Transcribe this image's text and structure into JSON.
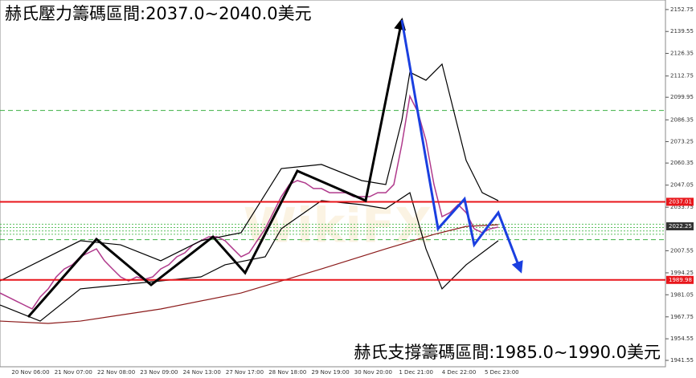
{
  "chart_data": {
    "type": "line",
    "title": "赫氏壓力籌碼區間:2037.0~2040.0美元",
    "annotation": "赫氏支撐籌碼區間:1985.0~1990.0美元",
    "watermark": "WikiFX",
    "categories": [
      "20 Nov 06:00",
      "21 Nov 07:00",
      "22 Nov 08:00",
      "23 Nov 09:00",
      "24 Nov 13:00",
      "27 Nov 17:00",
      "28 Nov 18:00",
      "29 Nov 19:00",
      "30 Nov 20:00",
      "1 Dec 21:00",
      "4 Dec 22:00",
      "5 Dec 23:00"
    ],
    "series": [
      {
        "name": "price",
        "color": "#b03a8c",
        "x": [
          0,
          1,
          2,
          3,
          4,
          5,
          6,
          7,
          8,
          9,
          10,
          11,
          12,
          13,
          14,
          15,
          16,
          17,
          18,
          19,
          20,
          21,
          22,
          23,
          24,
          25,
          26,
          27,
          28,
          29,
          30,
          31,
          32,
          33,
          34,
          35,
          36,
          37,
          38,
          39,
          40,
          41,
          42,
          43,
          44,
          45,
          46,
          47,
          48,
          49,
          50,
          51,
          52,
          53,
          54,
          55,
          56,
          57,
          58,
          59,
          60,
          61,
          62
        ],
        "values": [
          1982.1,
          1979.7,
          1977.3,
          1974.9,
          1972.5,
          1979.7,
          1984.6,
          1991.8,
          1996.6,
          1999.1,
          2003.9,
          2006.3,
          2008.7,
          2001.5,
          1996.6,
          1991.8,
          1989.4,
          1991.8,
          1990.4,
          1991.8,
          1996.6,
          1999.1,
          2003.9,
          2006.3,
          2011.1,
          2013.6,
          2016.0,
          2016.0,
          2013.6,
          2008.7,
          2003.9,
          2006.3,
          2013.6,
          2020.8,
          2030.5,
          2040.1,
          2047.4,
          2049.8,
          2048.3,
          2045.0,
          2045.0,
          2042.5,
          2042.5,
          2042.5,
          2040.1,
          2040.1,
          2040.1,
          2042.5,
          2042.5,
          2047.4,
          2071.6,
          2100.6,
          2090.9,
          2074.0,
          2047.4,
          2028.1,
          2030.5,
          2035.3,
          2030.5,
          2020.8,
          2018.4,
          2020.8,
          2021.8
        ]
      },
      {
        "name": "ma",
        "color": "#8b1a1a",
        "x": [
          0,
          6,
          10,
          20,
          30,
          40,
          48,
          54,
          58,
          62
        ],
        "values": [
          1965.2,
          1963.8,
          1965.2,
          1972.5,
          1982.1,
          1996.6,
          2008.7,
          2017.4,
          2022.2,
          2023.2
        ]
      },
      {
        "name": "upper-band",
        "color": "#000000",
        "x": [
          0,
          10,
          15,
          20,
          25,
          30,
          35,
          40,
          45,
          48,
          50,
          51,
          53,
          55,
          58,
          60,
          62
        ],
        "values": [
          1989.4,
          2013.6,
          2011.1,
          2001.5,
          2013.6,
          2018.4,
          2057.0,
          2059.5,
          2049.8,
          2047.4,
          2086.0,
          2115.0,
          2110.2,
          2119.9,
          2061.9,
          2042.5,
          2037.7
        ]
      },
      {
        "name": "lower-band",
        "color": "#000000",
        "x": [
          0,
          5,
          10,
          15,
          20,
          25,
          28,
          33,
          35,
          40,
          45,
          48,
          51,
          53,
          55,
          58,
          62
        ],
        "values": [
          1974.9,
          1965.2,
          1984.6,
          1987.0,
          1989.4,
          1991.8,
          1999.1,
          2003.9,
          2020.8,
          2037.7,
          2035.3,
          2032.9,
          2042.5,
          2008.7,
          1984.6,
          1999.1,
          2013.6
        ]
      }
    ],
    "levels": [
      {
        "value": 2037.01,
        "color": "#e8161b"
      },
      {
        "value": 1989.98,
        "color": "#e8161b"
      }
    ],
    "current_price": 2022.25,
    "guide_lines": [
      2092.0,
      2014.2
    ],
    "band_lines": [
      2017.5,
      2019.5,
      2021.5,
      2023.5
    ],
    "ylim": [
      1937.7,
      2158.5
    ],
    "yticks": [
      2152.75,
      2139.55,
      2126.35,
      2112.75,
      2099.95,
      2086.35,
      2073.25,
      2060.35,
      2047.05,
      2033.75,
      2007.55,
      1994.25,
      1981.05,
      1967.75,
      1954.55,
      1941.55
    ]
  }
}
